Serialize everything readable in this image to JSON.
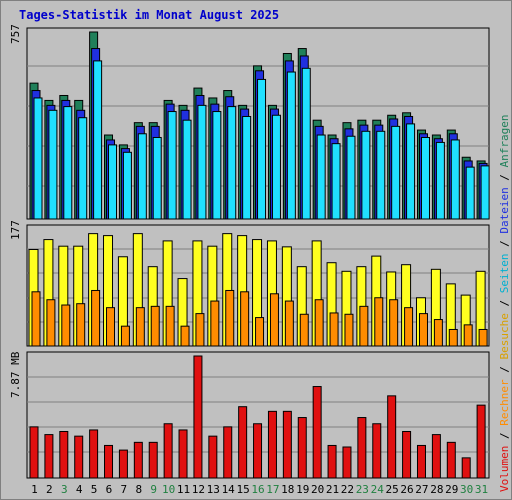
{
  "title": "Tages-Statistik im Monat August 2025",
  "colors": {
    "anfragen": "#20805a",
    "dateien": "#2030e0",
    "seiten": "#20e0ff",
    "besuche": "#ffff20",
    "rechner": "#ff8c00",
    "volumen": "#e01010"
  },
  "legend": {
    "volumen": "Volumen",
    "rechner": "Rechner",
    "besuche": "Besuche",
    "seiten": "Seiten",
    "dateien": "Dateien",
    "anfragen": "Anfragen",
    "sep": " / "
  },
  "chart_data": [
    {
      "type": "bar",
      "panel": "top",
      "y_tick_label": "757",
      "ylim": [
        0,
        757
      ],
      "categories": [
        "1",
        "2",
        "3",
        "4",
        "5",
        "6",
        "7",
        "8",
        "9",
        "10",
        "11",
        "12",
        "13",
        "14",
        "15",
        "16",
        "17",
        "18",
        "19",
        "20",
        "21",
        "22",
        "23",
        "24",
        "25",
        "26",
        "27",
        "28",
        "29",
        "30",
        "31"
      ],
      "weekend": [
        false,
        false,
        true,
        false,
        false,
        false,
        false,
        false,
        true,
        true,
        false,
        false,
        false,
        false,
        false,
        true,
        true,
        false,
        false,
        false,
        false,
        false,
        true,
        true,
        false,
        false,
        false,
        false,
        false,
        true,
        true
      ],
      "series": [
        {
          "name": "Anfragen",
          "values": [
            550,
            480,
            500,
            480,
            757,
            340,
            300,
            390,
            390,
            480,
            460,
            530,
            490,
            520,
            460,
            620,
            460,
            670,
            690,
            400,
            340,
            390,
            400,
            400,
            420,
            430,
            360,
            340,
            360,
            250,
            235
          ]
        },
        {
          "name": "Dateien",
          "values": [
            520,
            460,
            480,
            440,
            690,
            320,
            285,
            375,
            375,
            465,
            440,
            500,
            465,
            495,
            445,
            600,
            445,
            640,
            660,
            375,
            325,
            365,
            380,
            380,
            405,
            415,
            345,
            325,
            345,
            235,
            225
          ]
        },
        {
          "name": "Seiten",
          "values": [
            490,
            440,
            455,
            410,
            640,
            300,
            270,
            345,
            330,
            435,
            400,
            460,
            435,
            455,
            415,
            565,
            420,
            595,
            610,
            340,
            305,
            335,
            355,
            355,
            375,
            385,
            330,
            310,
            320,
            210,
            215
          ]
        }
      ]
    },
    {
      "type": "bar",
      "panel": "middle",
      "y_tick_label": "177",
      "ylim": [
        0,
        177
      ],
      "series": [
        {
          "name": "Besuche",
          "values": [
            146,
            161,
            151,
            151,
            170,
            167,
            135,
            170,
            120,
            159,
            102,
            159,
            151,
            170,
            167,
            161,
            159,
            150,
            120,
            159,
            126,
            113,
            120,
            136,
            112,
            123,
            73,
            116,
            94,
            77,
            113
          ]
        },
        {
          "name": "Rechner",
          "values": [
            82,
            70,
            62,
            64,
            84,
            58,
            30,
            58,
            60,
            60,
            30,
            49,
            68,
            84,
            82,
            43,
            79,
            68,
            48,
            70,
            50,
            48,
            60,
            73,
            70,
            58,
            49,
            40,
            25,
            32,
            25
          ]
        }
      ]
    },
    {
      "type": "bar",
      "panel": "bottom",
      "y_tick_label": "7.87 MB",
      "ylim": [
        0,
        7.87
      ],
      "series": [
        {
          "name": "Volumen",
          "values": [
            3.3,
            2.8,
            3.0,
            2.7,
            3.1,
            2.1,
            1.8,
            2.3,
            2.3,
            3.5,
            3.1,
            7.87,
            2.7,
            3.3,
            4.6,
            3.5,
            4.3,
            4.3,
            3.9,
            5.9,
            2.1,
            2.0,
            3.9,
            3.5,
            5.3,
            3.0,
            2.1,
            2.8,
            2.3,
            1.3,
            4.7
          ]
        }
      ]
    }
  ]
}
